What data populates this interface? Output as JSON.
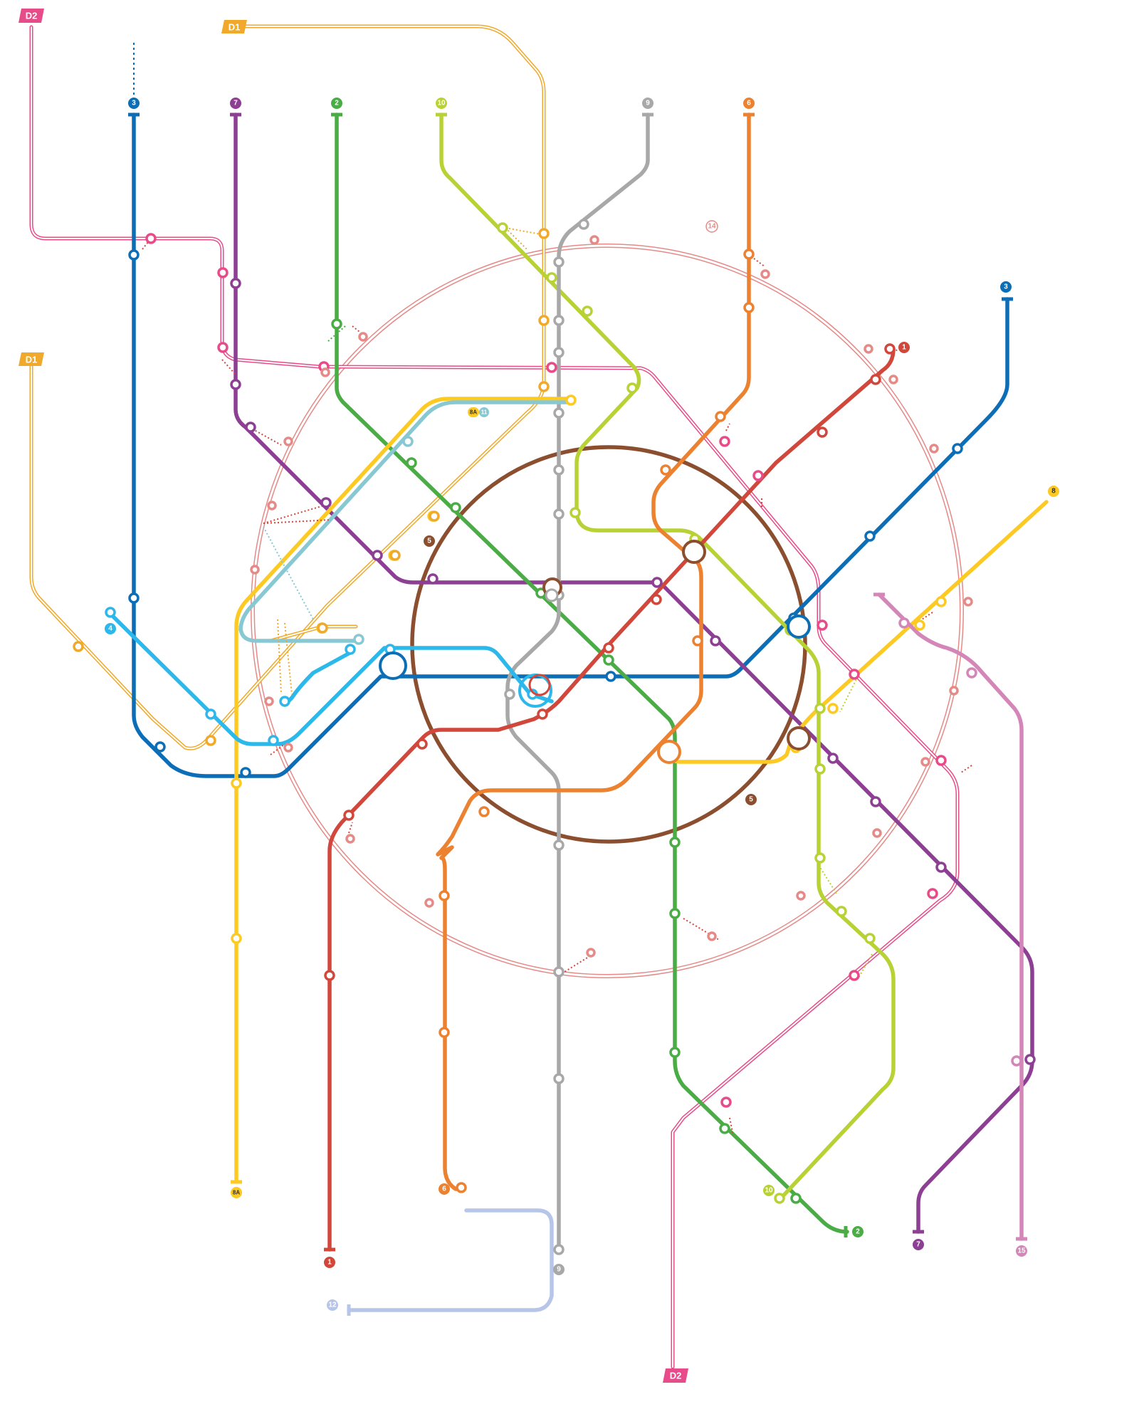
{
  "labels": {
    "d2_top": "D2",
    "d1_top": "D1",
    "d1_left": "D1",
    "d2_bottom": "D2",
    "l3_top": "3",
    "l7_top": "7",
    "l2_top": "2",
    "l10_top": "10",
    "l9_top": "9",
    "l6_top": "6",
    "l14": "14",
    "l1_right": "1",
    "l3_right": "3",
    "l8_right": "8",
    "l8a_11a": "8A",
    "l8a_11b": "11",
    "l5_left": "5",
    "l5_right": "5",
    "l4_left": "4",
    "l8a_bottom": "8A",
    "l1_bottom": "1",
    "l6_bottom": "6",
    "l9_bottom": "9",
    "l12_bottom": "12",
    "l10_bottom": "10",
    "l2_bottom": "2",
    "l7_bottom": "7",
    "l15_bottom": "15"
  },
  "line_colors": {
    "line_1": "#d1473b",
    "line_2": "#4aac45",
    "line_3": "#0c6eb6",
    "line_4": "#2cb8ea",
    "line_5": "#8b4e2f",
    "line_6": "#ec8130",
    "line_7": "#8d3f94",
    "line_8": "#fcca23",
    "line_8a": "#fcca23",
    "line_9": "#a8a8a8",
    "line_10": "#b8d235",
    "line_11": "#88c8d2",
    "line_12": "#b7c5e9",
    "line_14": "#e58a87",
    "line_15": "#d486b8",
    "d1": "#f0a92a",
    "d2": "#e84b8a"
  }
}
